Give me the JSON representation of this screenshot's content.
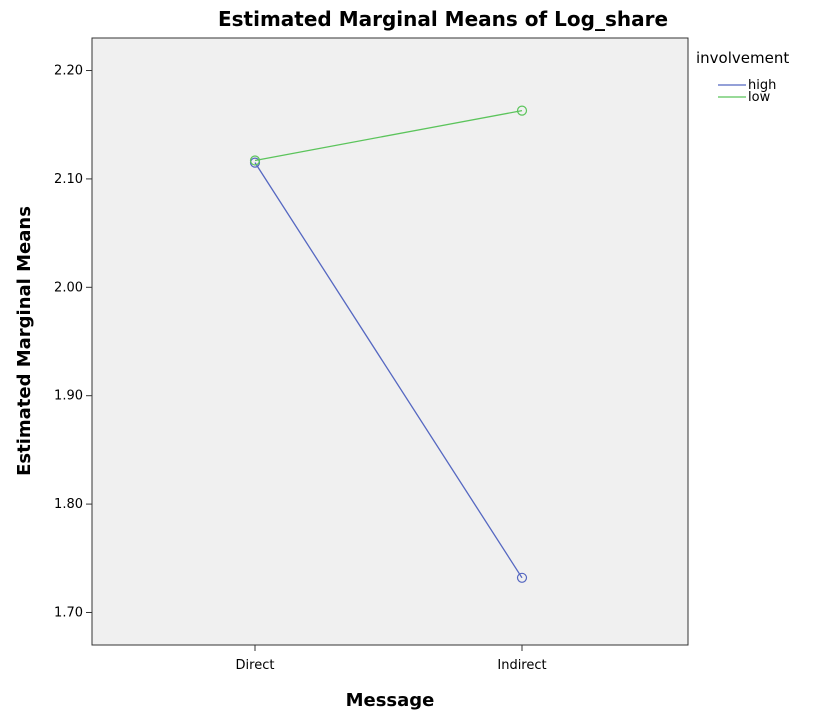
{
  "chart_data": {
    "type": "line",
    "title": "Estimated Marginal Means of Log_share",
    "xlabel": "Message",
    "ylabel": "Estimated Marginal Means",
    "categories": [
      "Direct",
      "Indirect"
    ],
    "ylim": [
      1.67,
      2.23
    ],
    "yticks": [
      "1.70",
      "1.80",
      "1.90",
      "2.00",
      "2.10",
      "2.20"
    ],
    "grid": false,
    "legend": {
      "title": "involvement",
      "placement": "right-top"
    },
    "series": [
      {
        "name": "high",
        "color": "#5567c1",
        "values": [
          2.115,
          1.732
        ]
      },
      {
        "name": "low",
        "color": "#5bc45b",
        "values": [
          2.117,
          2.163
        ]
      }
    ],
    "plot_background": "#f0f0f0",
    "marker": "open-circle"
  }
}
